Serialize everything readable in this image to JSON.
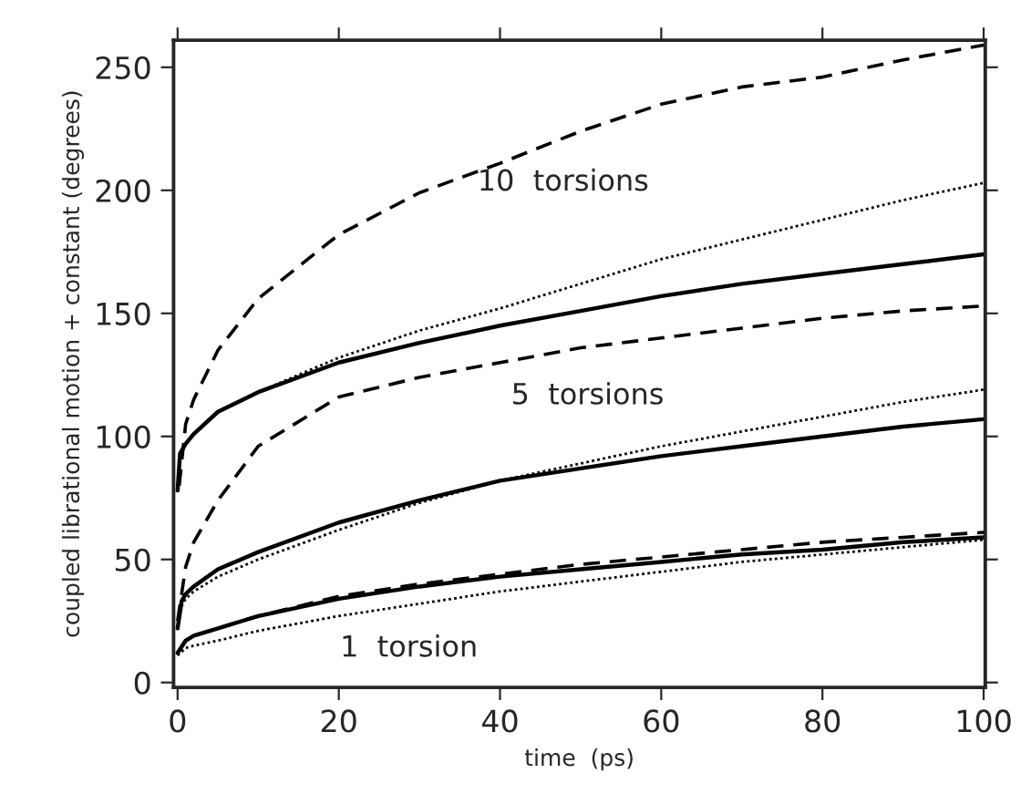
{
  "chart_data": {
    "type": "line",
    "xlabel": "time  (ps)",
    "ylabel": "coupled librational motion + constant (degrees)",
    "xlim": [
      -0.5,
      100.2
    ],
    "ylim": [
      -2,
      261
    ],
    "xticks": [
      0,
      20,
      40,
      60,
      80,
      100
    ],
    "yticks": [
      0,
      50,
      100,
      150,
      200,
      250
    ],
    "grid": false,
    "legend": false,
    "series": [
      {
        "color": "#000000",
        "line_style": "dashed",
        "x": [
          0.2,
          1,
          2,
          5,
          10,
          20,
          30,
          40,
          50,
          60,
          70,
          80,
          90,
          100
        ],
        "values": [
          80,
          105,
          115,
          135,
          156,
          182,
          199,
          211,
          224,
          235,
          242,
          246,
          253,
          259
        ]
      },
      {
        "color": "#000000",
        "line_style": "solid",
        "x": [
          0,
          0.3,
          1,
          2,
          5,
          10,
          20,
          30,
          40,
          50,
          60,
          70,
          80,
          90,
          100
        ],
        "values": [
          78,
          93,
          97,
          101,
          110,
          118,
          130,
          138,
          145,
          151,
          157,
          162,
          166,
          170,
          174
        ]
      },
      {
        "color": "#000000",
        "line_style": "dotted",
        "x": [
          0,
          0.3,
          1,
          2,
          5,
          10,
          20,
          30,
          40,
          50,
          60,
          70,
          80,
          90,
          100
        ],
        "values": [
          78,
          93,
          97,
          101,
          110,
          118,
          132,
          143,
          152,
          162,
          172,
          180,
          188,
          196,
          203
        ]
      },
      {
        "color": "#000000",
        "line_style": "dashed",
        "x": [
          0,
          1,
          2,
          5,
          10,
          20,
          30,
          40,
          50,
          60,
          70,
          80,
          90,
          100
        ],
        "values": [
          25,
          47,
          57,
          74,
          96,
          116,
          124,
          130,
          136,
          140,
          144,
          148,
          151,
          153
        ]
      },
      {
        "color": "#000000",
        "line_style": "solid",
        "x": [
          0,
          0.5,
          1,
          2,
          5,
          10,
          20,
          30,
          40,
          50,
          60,
          70,
          80,
          90,
          100
        ],
        "values": [
          22,
          33,
          36,
          39,
          46,
          53,
          65,
          74,
          82,
          87,
          92,
          96,
          100,
          104,
          107
        ]
      },
      {
        "color": "#000000",
        "line_style": "dotted",
        "x": [
          0,
          0.5,
          1,
          2,
          5,
          10,
          20,
          30,
          40,
          50,
          60,
          70,
          80,
          90,
          100
        ],
        "values": [
          22,
          31,
          34,
          37,
          43,
          50,
          62,
          73,
          82,
          89,
          96,
          102,
          108,
          114,
          119
        ]
      },
      {
        "color": "#000000",
        "line_style": "dashed",
        "x": [
          0,
          1,
          2,
          5,
          10,
          20,
          30,
          40,
          50,
          60,
          70,
          80,
          90,
          100
        ],
        "values": [
          12,
          17,
          19,
          22,
          27,
          35,
          40,
          44,
          48,
          51,
          54,
          57,
          59,
          61
        ]
      },
      {
        "color": "#000000",
        "line_style": "solid",
        "x": [
          0,
          1,
          2,
          5,
          10,
          20,
          30,
          40,
          50,
          60,
          70,
          80,
          90,
          100
        ],
        "values": [
          12,
          17,
          19,
          22,
          27,
          34,
          39,
          43,
          46,
          49,
          52,
          54,
          57,
          59
        ]
      },
      {
        "color": "#000000",
        "line_style": "dotted",
        "x": [
          0,
          1,
          2,
          5,
          10,
          20,
          30,
          40,
          50,
          60,
          70,
          80,
          90,
          100
        ],
        "values": [
          11,
          14,
          15,
          17,
          21,
          27,
          32,
          37,
          41,
          45,
          49,
          52,
          55,
          58
        ]
      }
    ],
    "annotations": [
      "10  torsions",
      "5  torsions",
      "1  torsion"
    ]
  }
}
